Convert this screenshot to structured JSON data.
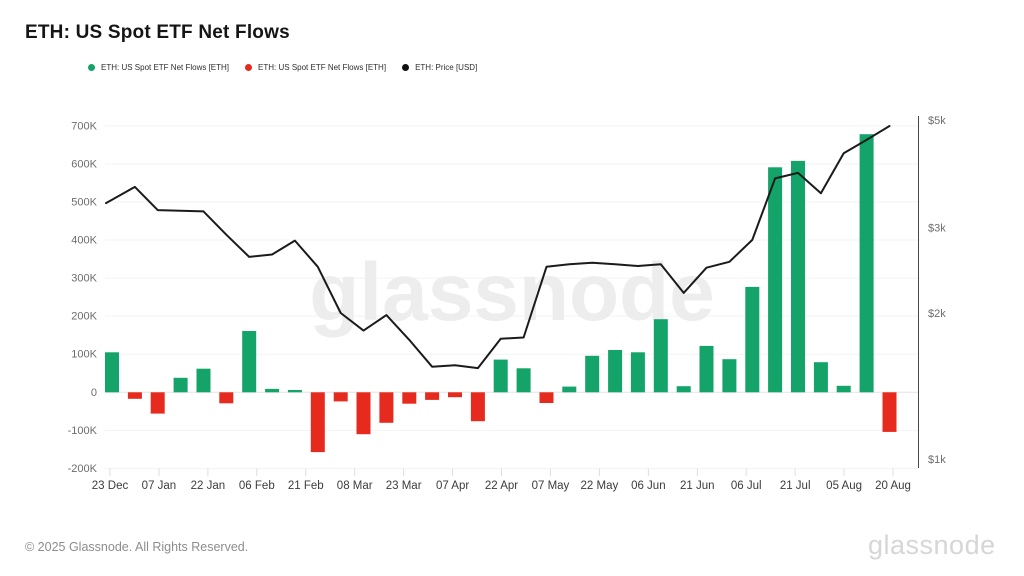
{
  "header": {
    "title": "ETH: US Spot ETF Net Flows"
  },
  "legend": {
    "items": [
      {
        "label": "ETH: US Spot ETF Net Flows [ETH]",
        "color": "#14a368"
      },
      {
        "label": "ETH: US Spot ETF Net Flows [ETH]",
        "color": "#e62b1e"
      },
      {
        "label": "ETH: Price [USD]",
        "color": "#111111"
      }
    ]
  },
  "watermark": {
    "text": "glassnode"
  },
  "footer": {
    "copyright": "© 2025 Glassnode. All Rights Reserved.",
    "brand": "glassnode"
  },
  "chart_data": {
    "type": "combo-bar-line",
    "title": "ETH: US Spot ETF Net Flows",
    "period": "weekly",
    "grid": "horizontal-only",
    "x_tick_labels": [
      "23 Dec",
      "07 Jan",
      "22 Jan",
      "06 Feb",
      "21 Feb",
      "08 Mar",
      "23 Mar",
      "07 Apr",
      "22 Apr",
      "07 May",
      "22 May",
      "06 Jun",
      "21 Jun",
      "06 Jul",
      "21 Jul",
      "05 Aug",
      "20 Aug"
    ],
    "bar_series": {
      "name": "ETH: US Spot ETF Net Flows [ETH]",
      "unit": "thousand ETH",
      "positive_color": "#14a368",
      "negative_color": "#e62b1e",
      "values": [
        105,
        -17,
        -56,
        38,
        62,
        -29,
        161,
        9,
        6,
        -157,
        -24,
        -110,
        -80,
        -30,
        -20,
        -13,
        -76,
        86,
        63,
        -28,
        15,
        96,
        111,
        105,
        192,
        16,
        122,
        87,
        277,
        591,
        608,
        79,
        17,
        678,
        -104
      ]
    },
    "line_series": {
      "name": "ETH: Price [USD]",
      "unit": "USD",
      "color": "#1b1b1b",
      "values": [
        3370,
        3640,
        3260,
        3250,
        3240,
        2900,
        2610,
        2640,
        2820,
        2490,
        2000,
        1840,
        1980,
        1760,
        1550,
        1560,
        1540,
        1770,
        1780,
        2490,
        2520,
        2540,
        2520,
        2500,
        2520,
        2200,
        2480,
        2550,
        2830,
        3790,
        3890,
        3530,
        4270,
        4550,
        4860
      ]
    },
    "left_axis": {
      "unit": "ETH",
      "ylim_thousands": [
        -200,
        700
      ],
      "ticks": [
        {
          "label": "700K",
          "value": 700
        },
        {
          "label": "600K",
          "value": 600
        },
        {
          "label": "500K",
          "value": 500
        },
        {
          "label": "400K",
          "value": 400
        },
        {
          "label": "300K",
          "value": 300
        },
        {
          "label": "200K",
          "value": 200
        },
        {
          "label": "100K",
          "value": 100
        },
        {
          "label": "0",
          "value": 0
        },
        {
          "label": "-100K",
          "value": -100
        },
        {
          "label": "-200K",
          "value": -200
        }
      ]
    },
    "right_axis": {
      "unit": "USD",
      "scale": "log",
      "ylim": [
        1000,
        5000
      ],
      "ticks": [
        {
          "label": "$5k",
          "value": 5000
        },
        {
          "label": "$3k",
          "value": 3000
        },
        {
          "label": "$2k",
          "value": 2000
        },
        {
          "label": "$1k",
          "value": 1000
        }
      ]
    }
  }
}
